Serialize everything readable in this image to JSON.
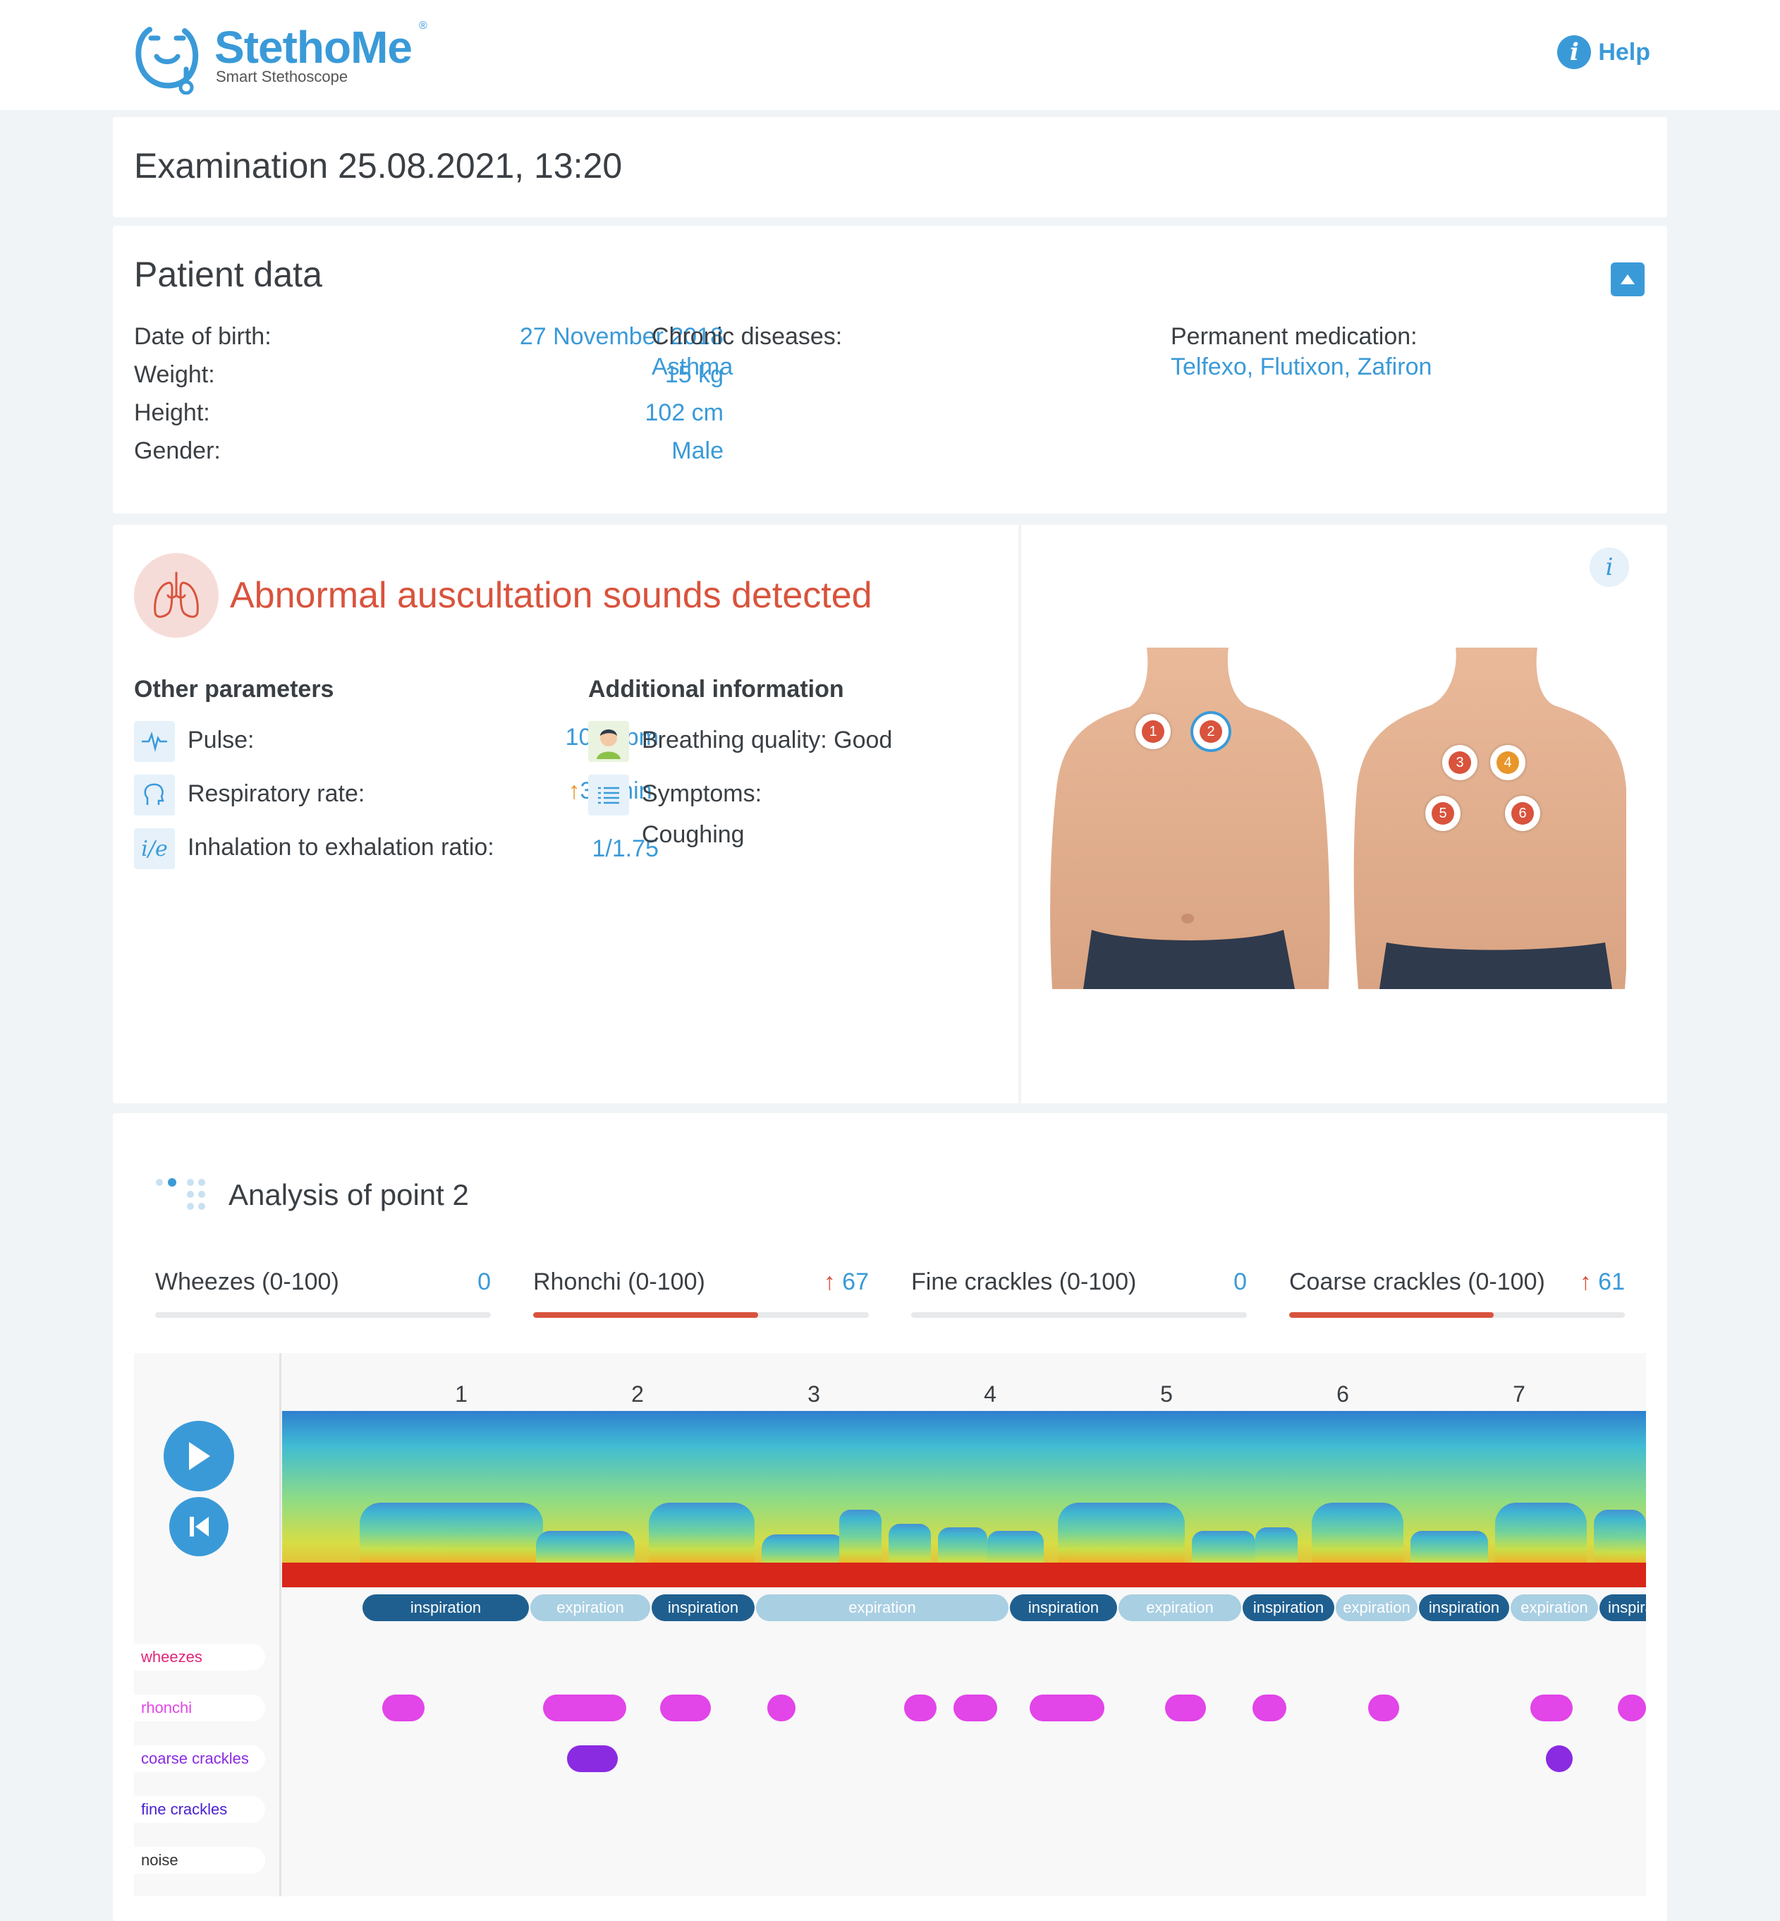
{
  "header": {
    "logo_name": "StethoMe",
    "logo_reg": "®",
    "logo_tagline": "Smart Stethoscope",
    "help_icon": "i",
    "help_label": "Help"
  },
  "exam": {
    "title": "Examination 25.08.2021, 13:20"
  },
  "patient": {
    "title": "Patient data",
    "rows": [
      {
        "label": "Date of birth:",
        "value": "27 November 2018"
      },
      {
        "label": "Weight:",
        "value": "15 kg"
      },
      {
        "label": "Height:",
        "value": "102 cm"
      },
      {
        "label": "Gender:",
        "value": "Male"
      }
    ],
    "chronic_label": "Chronic diseases:",
    "chronic_value": "Asthma",
    "medication_label": "Permanent medication:",
    "medication_value": "Telfexo, Flutixon, Zafiron"
  },
  "result": {
    "title": "Abnormal auscultation sounds detected",
    "info_icon": "i",
    "other_title": "Other parameters",
    "params": [
      {
        "icon": "pulse-icon",
        "label": "Pulse:",
        "arrow": "",
        "value": "102 bpm"
      },
      {
        "icon": "respiratory-icon",
        "label": "Respiratory rate:",
        "arrow": "↑",
        "value": "32/min."
      },
      {
        "icon": "ratio-icon",
        "label": "Inhalation to exhalation ratio:",
        "arrow": "",
        "value": "1/1.75"
      }
    ],
    "ratio_icon_text": "i/e",
    "additional_title": "Additional information",
    "breathing": "Breathing quality: Good",
    "symptoms_label": "Symptoms:",
    "symptoms_value": "Coughing",
    "points": [
      "1",
      "2",
      "3",
      "4",
      "5",
      "6"
    ],
    "selected_point": "2",
    "colors": {
      "alert": "#d9533d",
      "accent": "#3a9ad8",
      "warn": "#e8962a"
    }
  },
  "analysis": {
    "title": "Analysis of point 2",
    "scores": [
      {
        "label": "Wheezes (0-100)",
        "arrow": "",
        "value": "0",
        "level": 0
      },
      {
        "label": "Rhonchi (0-100)",
        "arrow": "↑",
        "value": "67",
        "level": 67
      },
      {
        "label": "Fine crackles (0-100)",
        "arrow": "",
        "value": "0",
        "level": 0
      },
      {
        "label": "Coarse crackles (0-100)",
        "arrow": "↑",
        "value": "61",
        "level": 61
      }
    ],
    "timeline_ticks": [
      "1",
      "2",
      "3",
      "4",
      "5",
      "6",
      "7"
    ],
    "phases": [
      "inspiration",
      "expiration",
      "inspiration",
      "expiration",
      "inspiration",
      "expiration",
      "inspiration",
      "expiration",
      "inspiration",
      "expiration",
      "inspiration"
    ],
    "tracks": [
      "wheezes",
      "rhonchi",
      "coarse crackles",
      "fine crackles",
      "noise"
    ],
    "track_colors": {
      "wheezes": "#e0267a",
      "rhonchi": "#e245e8",
      "coarse crackles": "#8a2be2",
      "fine crackles": "#4b1fd0",
      "noise": "#333333"
    }
  }
}
